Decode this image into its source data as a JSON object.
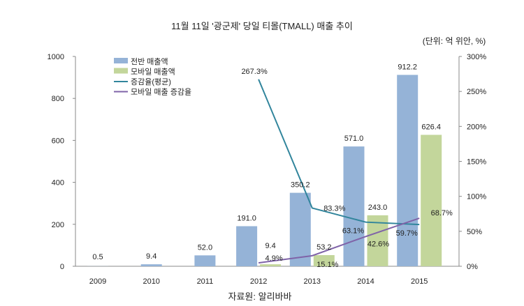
{
  "chart_data": {
    "type": "bar",
    "title": "11월 11일 '광군제' 당일 티몰(TMALL) 매출 추이",
    "unit_label": "(단위: 억 위안, %)",
    "source": "자료원: 알리바바",
    "categories": [
      "2009",
      "2010",
      "2011",
      "2012",
      "2013",
      "2014",
      "2015"
    ],
    "left_axis": {
      "range": [
        0,
        1000
      ],
      "ticks": [
        "0",
        "200",
        "400",
        "600",
        "800",
        "1000"
      ]
    },
    "right_axis": {
      "range": [
        0,
        300
      ],
      "ticks": [
        "0%",
        "50%",
        "100%",
        "150%",
        "200%",
        "250%",
        "300%"
      ]
    },
    "legend_position": "top-left",
    "series": [
      {
        "name": "전반 매출액",
        "kind": "bar",
        "axis": "left",
        "color": "#95b3d7",
        "values": [
          0.5,
          9.4,
          52.0,
          191.0,
          350.2,
          571.0,
          912.2
        ],
        "labels": [
          "0.5",
          "9.4",
          "52.0",
          "191.0",
          "350.2",
          "571.0",
          "912.2"
        ]
      },
      {
        "name": "모바일 매출액",
        "kind": "bar",
        "axis": "left",
        "color": "#c3d69b",
        "values": [
          null,
          null,
          null,
          9.4,
          53.2,
          243.0,
          626.4
        ],
        "labels": [
          null,
          null,
          null,
          "9.4",
          "53.2",
          "243.0",
          "626.4"
        ]
      },
      {
        "name": "증감율(평균)",
        "kind": "line",
        "axis": "right",
        "color": "#31859c",
        "values": [
          null,
          null,
          null,
          267.3,
          83.3,
          63.1,
          59.7
        ],
        "labels": [
          null,
          null,
          null,
          "267.3%",
          "83.3%",
          "63.1%",
          "59.7%"
        ]
      },
      {
        "name": "모바일 매출 증감율",
        "kind": "line",
        "axis": "right",
        "color": "#7f63a8",
        "values": [
          null,
          null,
          null,
          4.9,
          15.1,
          42.6,
          68.7
        ],
        "labels": [
          null,
          null,
          null,
          "4.9%",
          "15.1%",
          "42.6%",
          "68.7%"
        ]
      }
    ]
  }
}
